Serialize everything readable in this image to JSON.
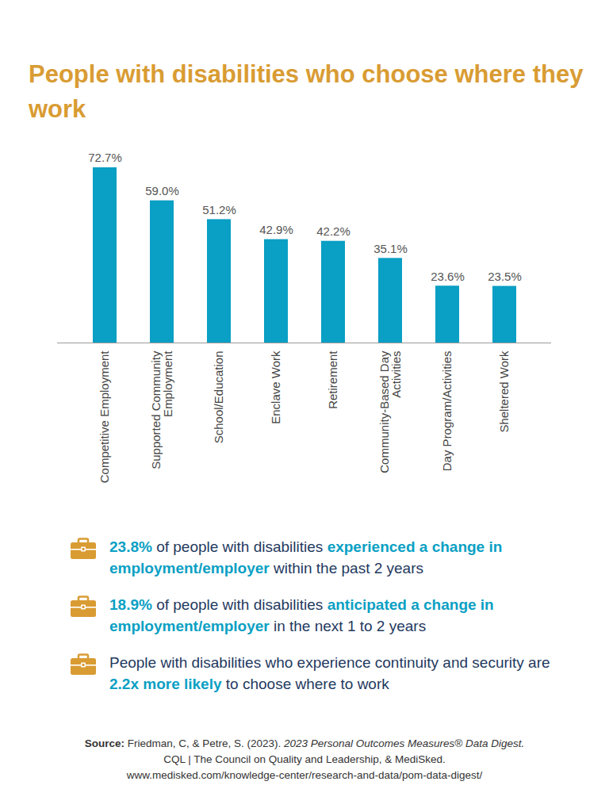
{
  "chart_data": {
    "type": "bar",
    "title": "People with disabilities who choose where they work",
    "categories": [
      "Competitive Employment",
      "Supported Community Employment",
      "School/Education",
      "Enclave Work",
      "Retirement",
      "Community-Based Day Activities",
      "Day Program/Activities",
      "Sheltered Work"
    ],
    "values": [
      72.7,
      59.0,
      51.2,
      42.9,
      42.2,
      35.1,
      23.6,
      23.5
    ],
    "value_labels": [
      "72.7%",
      "59.0%",
      "51.2%",
      "42.9%",
      "42.2%",
      "35.1%",
      "23.6%",
      "23.5%"
    ],
    "color": "#0a9fc4",
    "data_labels": true,
    "tick_labels": "x",
    "grid": false
  },
  "notes": [
    [
      {
        "text": "23.8%",
        "highlight": true
      },
      {
        "text": " of people with disabilities ",
        "highlight": false
      },
      {
        "text": "experienced a change in employment/employer",
        "highlight": true
      },
      {
        "text": " within the past 2 years",
        "highlight": false
      }
    ],
    [
      {
        "text": "18.9%",
        "highlight": true
      },
      {
        "text": " of people with disabilities ",
        "highlight": false
      },
      {
        "text": "anticipated a change in employment/employer",
        "highlight": true
      },
      {
        "text": " in the next 1 to 2 years",
        "highlight": false
      }
    ],
    [
      {
        "text": "People with disabilities who experience continuity and security are ",
        "highlight": false
      },
      {
        "text": "2.2x more likely",
        "highlight": true
      },
      {
        "text": " to choose where to work",
        "highlight": false
      }
    ]
  ],
  "source": {
    "label": "Source:",
    "authors": "Friedman, C, & Petre, S. (2023).",
    "publication": "2023 Personal Outcomes Measures® Data Digest.",
    "lines": [
      "CQL | The Council on Quality and Leadership, & MediSked.",
      "www.medisked.com/knowledge-center/research-and-data/pom-data-digest/"
    ]
  }
}
